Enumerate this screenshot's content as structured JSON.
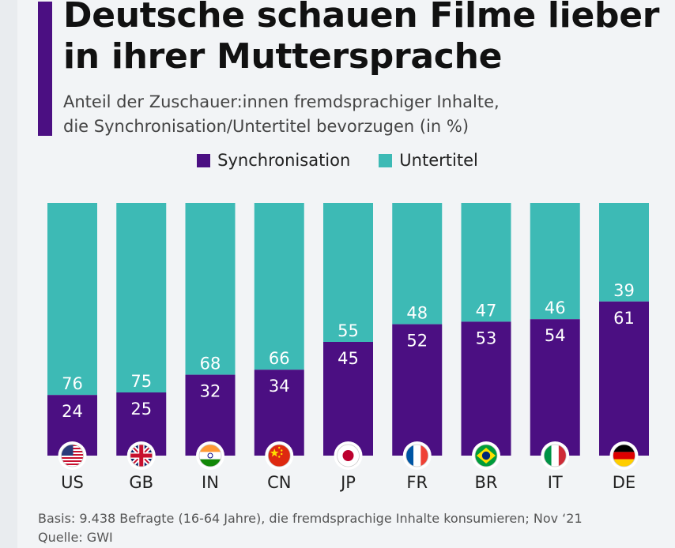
{
  "header": {
    "title_line1": "Deutsche schauen Filme lieber",
    "title_line2": "in ihrer Muttersprache",
    "subtitle_line1": "Anteil der Zuschauer:innen fremdsprachiger Inhalte,",
    "subtitle_line2": "die Synchronisation/Untertitel bevorzugen (in %)"
  },
  "colors": {
    "synchronisation": "#4b0f82",
    "untertitel": "#3dbab5",
    "accent": "#4b0f82"
  },
  "chart_data": {
    "type": "bar",
    "stacked": true,
    "title": "Deutsche schauen Filme lieber in ihrer Muttersprache",
    "categories": [
      "US",
      "GB",
      "IN",
      "CN",
      "JP",
      "FR",
      "BR",
      "IT",
      "DE"
    ],
    "series": [
      {
        "name": "Synchronisation",
        "values": [
          24,
          25,
          32,
          34,
          45,
          52,
          53,
          54,
          61
        ]
      },
      {
        "name": "Untertitel",
        "values": [
          76,
          75,
          68,
          66,
          55,
          48,
          47,
          46,
          39
        ]
      }
    ],
    "ylim": [
      0,
      100
    ],
    "legend": "top-center",
    "grid": false
  },
  "footer": {
    "basis": "Basis: 9.438 Befragte (16-64 Jahre), die fremdsprachige Inhalte konsumieren; Nov ‘21",
    "source": "Quelle: GWI"
  }
}
